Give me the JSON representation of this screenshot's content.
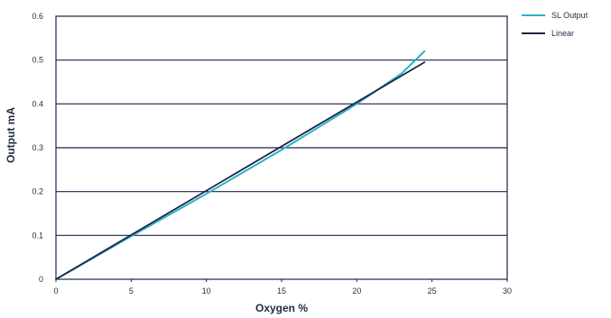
{
  "chart_data": {
    "type": "line",
    "xlabel": "Oxygen %",
    "ylabel": "Output mA",
    "xlim": [
      0,
      30
    ],
    "ylim": [
      0,
      0.6
    ],
    "x_ticks": [
      0,
      5,
      10,
      15,
      20,
      25,
      30
    ],
    "y_ticks": [
      0,
      0.1,
      0.2,
      0.3,
      0.4,
      0.5,
      0.6
    ],
    "x_tick_labels": [
      "0",
      "5",
      "10",
      "15",
      "20",
      "25",
      "30"
    ],
    "y_tick_labels": [
      "0",
      "0.1",
      "0.2",
      "0.3",
      "0.4",
      "0.5",
      "0.6"
    ],
    "grid": "horizontal",
    "legend_position": "right",
    "series": [
      {
        "name": "SL Output",
        "color": "#29b3c6",
        "x": [
          0,
          5,
          10,
          15,
          20,
          23,
          24.5
        ],
        "y": [
          0,
          0.098,
          0.195,
          0.295,
          0.4,
          0.47,
          0.52
        ]
      },
      {
        "name": "Linear",
        "color": "#1c2448",
        "x": [
          0,
          24.5
        ],
        "y": [
          0,
          0.495
        ]
      }
    ]
  }
}
